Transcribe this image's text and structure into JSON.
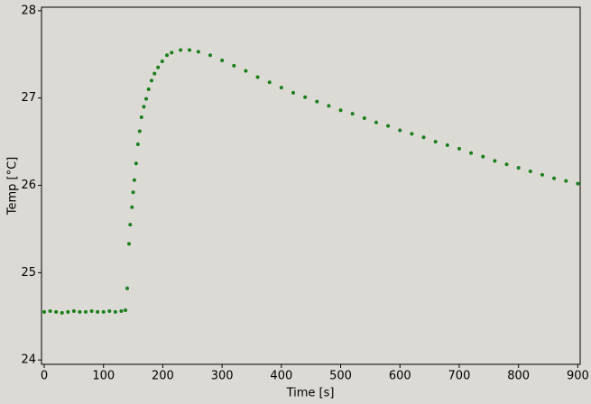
{
  "chart_data": {
    "type": "scatter",
    "x_label": "Time [s]",
    "y_label": "Temp [°C]",
    "xlim": [
      -4.6,
      904
    ],
    "ylim": [
      23.95,
      28.04
    ],
    "xticks": [
      0,
      100,
      200,
      300,
      400,
      500,
      600,
      700,
      800,
      900
    ],
    "yticks": [
      24,
      25,
      26,
      27,
      28
    ],
    "grid": false,
    "series": [
      {
        "color": "#1a7f1a",
        "x": [
          0,
          10,
          20,
          30,
          40,
          50,
          60,
          70,
          80,
          90,
          100,
          110,
          120,
          130,
          137,
          140,
          143,
          145,
          148,
          150,
          152,
          155,
          158,
          161,
          164,
          168,
          172,
          176,
          181,
          186,
          192,
          199,
          207,
          215,
          230,
          245,
          260,
          280,
          300,
          320,
          340,
          360,
          380,
          400,
          420,
          440,
          460,
          480,
          500,
          520,
          540,
          560,
          580,
          600,
          620,
          640,
          660,
          680,
          700,
          720,
          740,
          760,
          780,
          800,
          820,
          840,
          860,
          880,
          900
        ],
        "values": [
          24.55,
          24.56,
          24.55,
          24.54,
          24.55,
          24.56,
          24.55,
          24.55,
          24.56,
          24.55,
          24.55,
          24.56,
          24.55,
          24.56,
          24.57,
          24.82,
          25.33,
          25.55,
          25.75,
          25.92,
          26.06,
          26.25,
          26.47,
          26.62,
          26.78,
          26.9,
          26.99,
          27.1,
          27.2,
          27.28,
          27.35,
          27.42,
          27.49,
          27.52,
          27.55,
          27.55,
          27.53,
          27.49,
          27.43,
          27.37,
          27.31,
          27.24,
          27.18,
          27.12,
          27.06,
          27.01,
          26.96,
          26.91,
          26.86,
          26.82,
          26.77,
          26.72,
          26.68,
          26.63,
          26.59,
          26.55,
          26.5,
          26.46,
          26.42,
          26.37,
          26.33,
          26.28,
          26.24,
          26.2,
          26.16,
          26.12,
          26.08,
          26.05,
          26.02
        ]
      }
    ]
  }
}
